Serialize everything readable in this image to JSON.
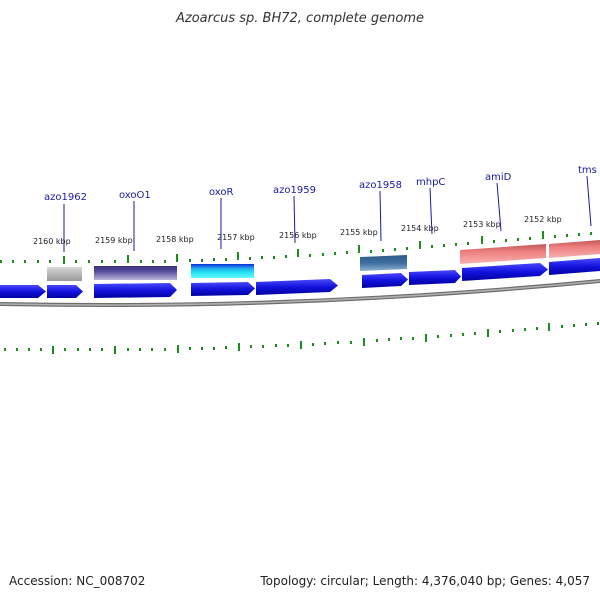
{
  "title": "Azoarcus sp. BH72, complete genome",
  "footer": {
    "accession": "Accession: NC_008702",
    "topology": "Topology: circular; Length: 4,376,040 bp; Genes: 4,057"
  },
  "scale_labels": [
    "2160 kbp",
    "2159 kbp",
    "2158 kbp",
    "2157 kbp",
    "2156 kbp",
    "2155 kbp",
    "2154 kbp",
    "2153 kbp",
    "2152 kbp"
  ],
  "gene_labels": [
    "azo1962",
    "oxoO1",
    "oxoR",
    "azo1959",
    "mhpC",
    "azo1958",
    "amiD",
    "tms"
  ],
  "colors": {
    "gene_blue": "#1212dc",
    "backbone": "#8a8a8a",
    "tick_green": "#1c8c1c",
    "label_line": "#1a1aa6",
    "feature_grey": "#b8b8b8",
    "feature_purple": "#4a3f8c",
    "feature_cyan": "#22e3f0",
    "feature_steelblue": "#3e6fa0",
    "feature_salmon": "#ee8080"
  }
}
